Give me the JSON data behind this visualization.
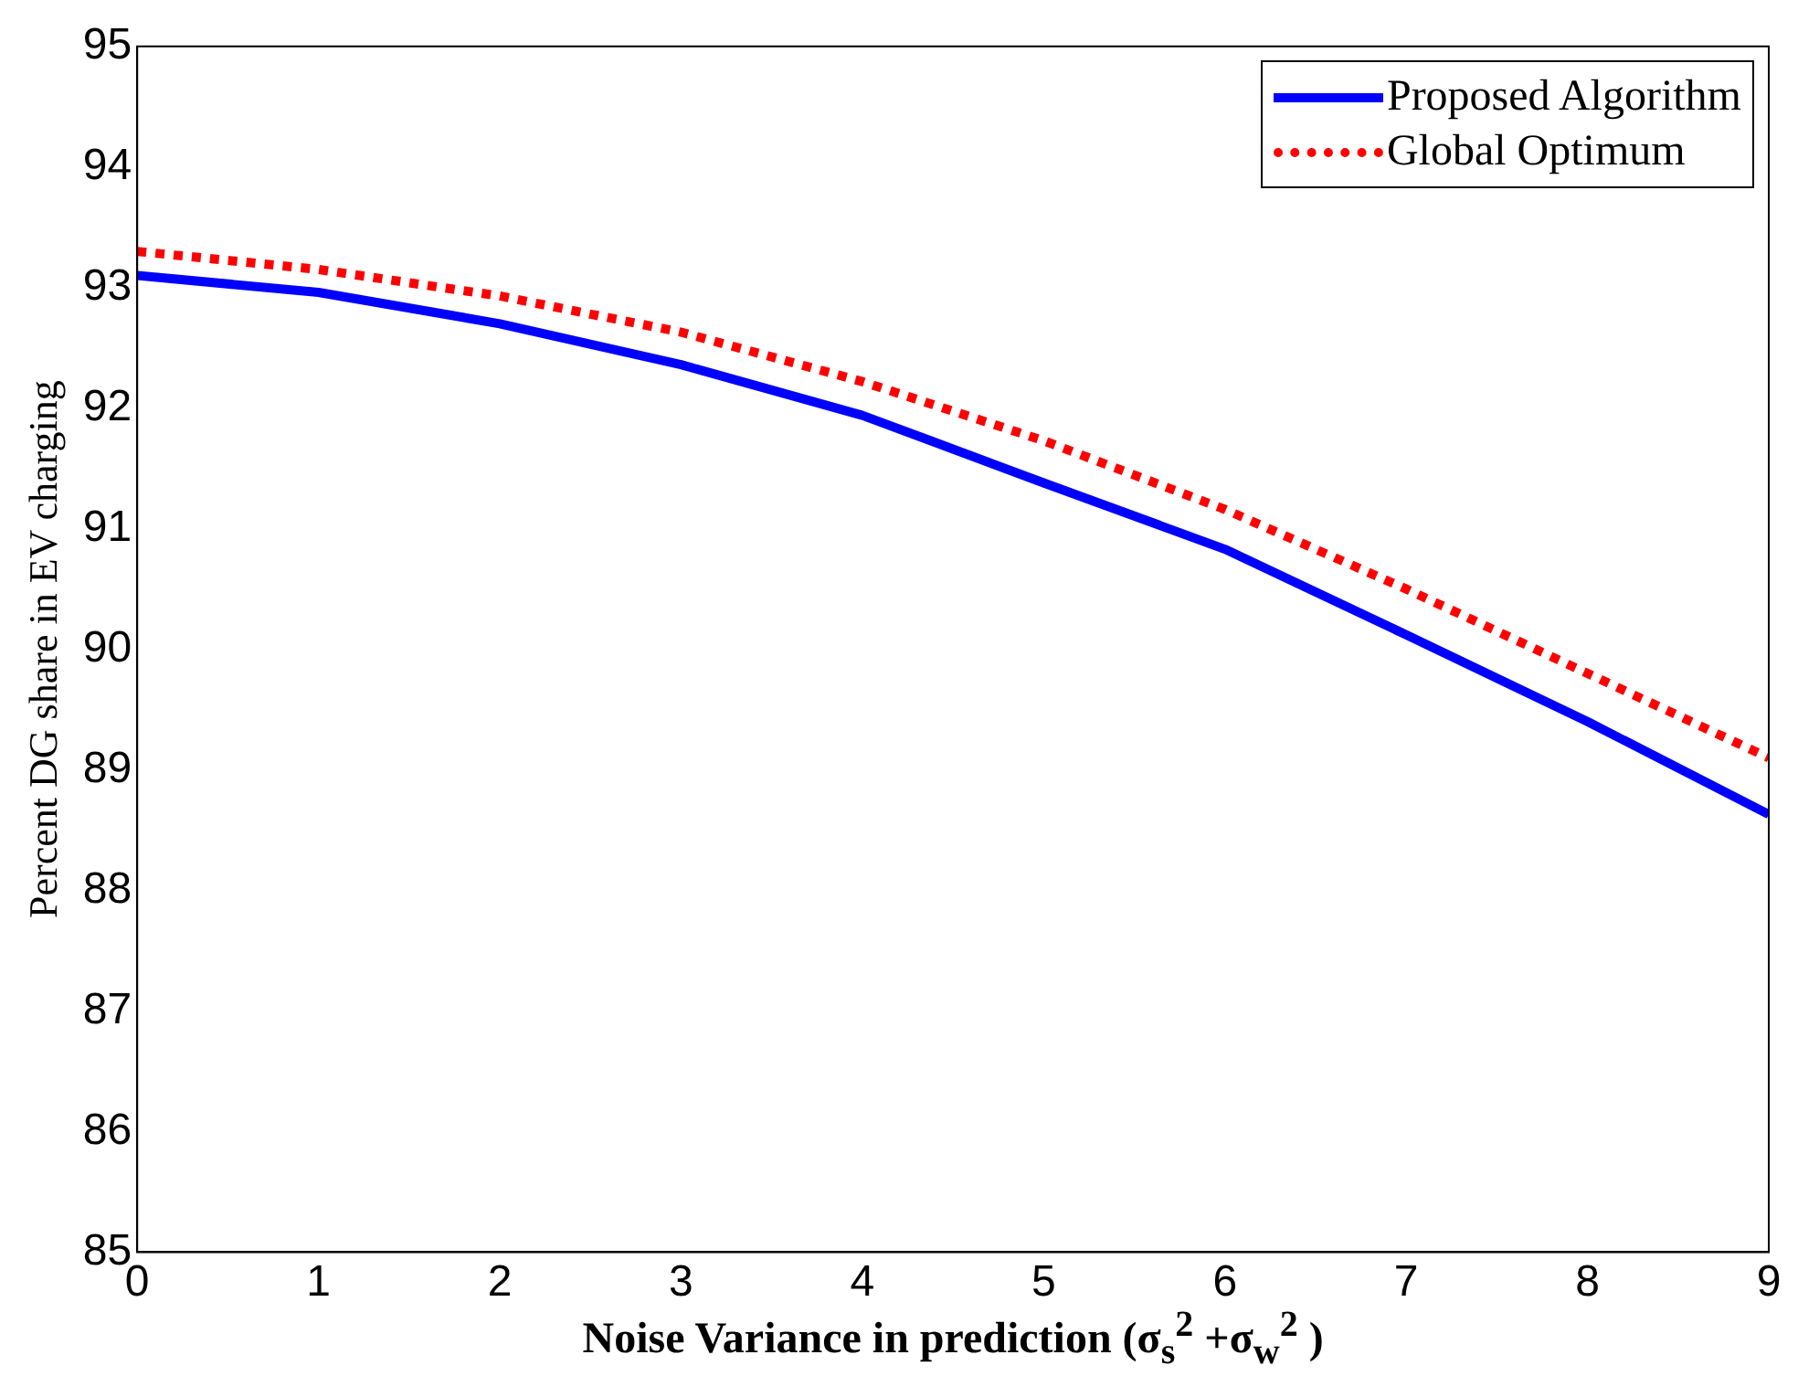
{
  "chart_data": {
    "type": "line",
    "xlabel": "Noise Variance in prediction (σ$_{s}$$^{2}$ +σ$_{w}$$^{2}$ )",
    "ylabel": "Percent DG share in EV charging",
    "x": [
      0,
      1,
      2,
      3,
      4,
      5,
      6,
      7,
      8,
      9
    ],
    "series": [
      {
        "name": "Proposed Algorithm",
        "color": "#0000ff",
        "line_style": "solid",
        "values": [
          93.1,
          92.96,
          92.7,
          92.36,
          91.94,
          91.38,
          90.83,
          90.12,
          89.4,
          88.63
        ]
      },
      {
        "name": "Global Optimum",
        "color": "#ff0000",
        "line_style": "dotted",
        "values": [
          93.3,
          93.15,
          92.93,
          92.63,
          92.22,
          91.73,
          91.16,
          90.5,
          89.8,
          89.1
        ]
      }
    ],
    "xlim": [
      0,
      9
    ],
    "xticks": [
      0,
      1,
      2,
      3,
      4,
      5,
      6,
      7,
      8,
      9
    ],
    "ylim": [
      85,
      95
    ],
    "yticks": [
      85,
      86,
      87,
      88,
      89,
      90,
      91,
      92,
      93,
      94,
      95
    ],
    "grid": false,
    "legend": "top right",
    "marker": "none"
  }
}
